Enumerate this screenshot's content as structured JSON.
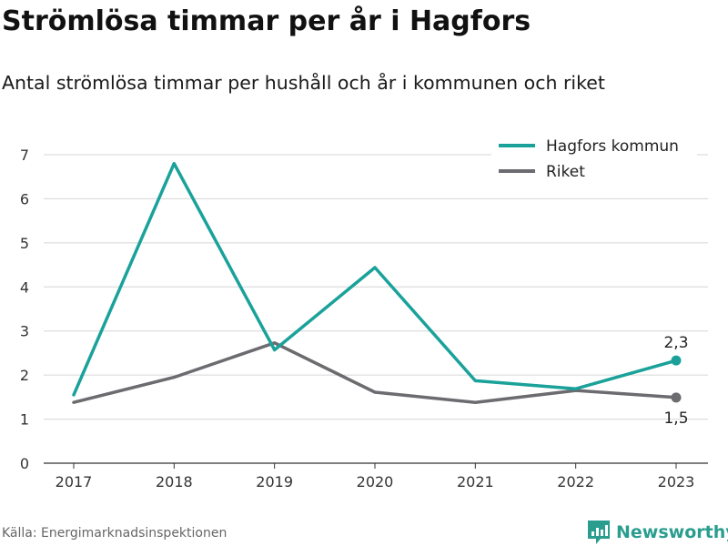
{
  "header": {
    "title": "Strömlösa timmar per år i Hagfors",
    "subtitle": "Antal strömlösa timmar per hushåll och år i kommunen och riket"
  },
  "footer": {
    "source": "Källa: Energimarknadsinspektionen",
    "brand": "Newsworthy"
  },
  "colors": {
    "hagfors": "#1aa29a",
    "riket": "#6b6b70",
    "grid": "#d6d6d6",
    "brand": "#2a9d8f"
  },
  "icons": {
    "brand_logo": "newsworthy-logo-icon"
  },
  "chart_data": {
    "type": "line",
    "title": "Strömlösa timmar per år i Hagfors",
    "subtitle": "Antal strömlösa timmar per hushåll och år i kommunen och riket",
    "x": [
      "2017",
      "2018",
      "2019",
      "2020",
      "2021",
      "2022",
      "2023"
    ],
    "ylim": [
      0,
      7
    ],
    "yticks": [
      0,
      1,
      2,
      3,
      4,
      5,
      6,
      7
    ],
    "grid": true,
    "legend_position": "top-right",
    "series": [
      {
        "name": "Hagfors kommun",
        "color": "#1aa29a",
        "values": [
          1.55,
          6.8,
          2.57,
          4.44,
          1.87,
          1.69,
          2.33
        ],
        "end_label": "2,3",
        "end_label_position": "above"
      },
      {
        "name": "Riket",
        "color": "#6b6b70",
        "values": [
          1.38,
          1.95,
          2.73,
          1.61,
          1.38,
          1.65,
          1.49
        ],
        "end_label": "1,5",
        "end_label_position": "below"
      }
    ]
  }
}
